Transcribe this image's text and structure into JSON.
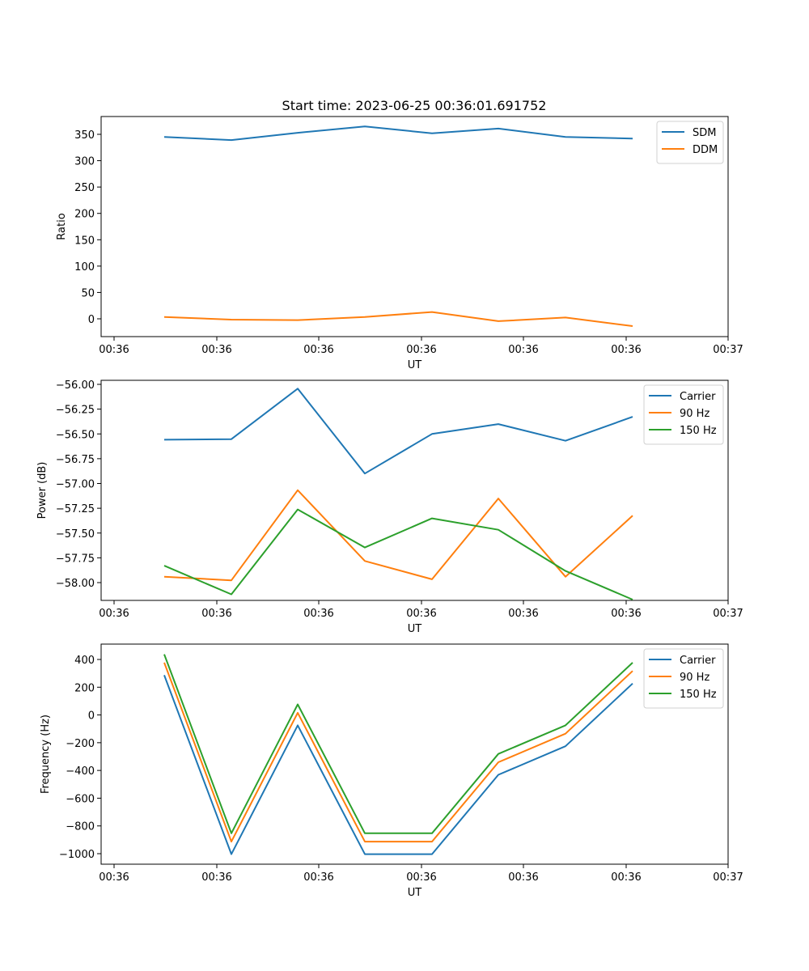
{
  "figure_title": "Start time: 2023-06-25 00:36:01.691752",
  "chart_data": [
    {
      "type": "line",
      "title": "Start time: 2023-06-25 00:36:01.691752",
      "xlabel": "UT",
      "ylabel": "Ratio",
      "x_ticks": [
        "00:36",
        "00:36",
        "00:36",
        "00:36",
        "00:36",
        "00:36",
        "00:36",
        "00:37"
      ],
      "y_ticks": [
        "0",
        "50",
        "100",
        "150",
        "200",
        "250",
        "300",
        "350"
      ],
      "ylim": [
        -35,
        385
      ],
      "grid": false,
      "legend_position": "top-right",
      "series": [
        {
          "name": "SDM",
          "color": "#1f77b4",
          "values": [
            346,
            340,
            354,
            366,
            353,
            362,
            346,
            343
          ]
        },
        {
          "name": "DDM",
          "color": "#ff7f0e",
          "values": [
            2.5,
            -2.5,
            -3.5,
            2.5,
            12,
            -5.5,
            1.5,
            -15
          ]
        }
      ]
    },
    {
      "type": "line",
      "title": "",
      "xlabel": "UT",
      "ylabel": "Power (dB)",
      "x_ticks": [
        "00:36",
        "00:36",
        "00:36",
        "00:36",
        "00:36",
        "00:36",
        "00:36",
        "00:37"
      ],
      "y_ticks": [
        "−58.00",
        "−57.75",
        "−57.50",
        "−57.25",
        "−57.00",
        "−56.75",
        "−56.50",
        "−56.25",
        "−56.00"
      ],
      "ylim": [
        -58.093,
        -55.98
      ],
      "grid": false,
      "legend_position": "top-right",
      "series": [
        {
          "name": "Carrier",
          "color": "#1f77b4",
          "values": [
            -56.55,
            -56.545,
            -56.06,
            -56.875,
            -56.495,
            -56.4,
            -56.56,
            -56.33
          ]
        },
        {
          "name": "90 Hz",
          "color": "#ff7f0e",
          "values": [
            -57.865,
            -57.9,
            -57.035,
            -57.715,
            -57.89,
            -57.115,
            -57.865,
            -57.28
          ]
        },
        {
          "name": "150 Hz",
          "color": "#2ca02c",
          "values": [
            -57.76,
            -58.035,
            -57.22,
            -57.585,
            -57.305,
            -57.415,
            -57.81,
            -58.085
          ]
        }
      ]
    },
    {
      "type": "line",
      "title": "",
      "xlabel": "UT",
      "ylabel": "Frequency (Hz)",
      "x_ticks": [
        "00:36",
        "00:36",
        "00:36",
        "00:36",
        "00:36",
        "00:36",
        "00:36",
        "00:37"
      ],
      "y_ticks": [
        "−1000",
        "−800",
        "−600",
        "−400",
        "−200",
        "0",
        "200",
        "400"
      ],
      "ylim": [
        -1072,
        508
      ],
      "grid": false,
      "legend_position": "top-right",
      "series": [
        {
          "name": "Carrier",
          "color": "#1f77b4",
          "values": [
            285,
            -1000,
            -75,
            -1000,
            -1000,
            -430,
            -225,
            225
          ]
        },
        {
          "name": "90 Hz",
          "color": "#ff7f0e",
          "values": [
            375,
            -910,
            15,
            -910,
            -910,
            -340,
            -135,
            315
          ]
        },
        {
          "name": "150 Hz",
          "color": "#2ca02c",
          "values": [
            435,
            -850,
            75,
            -850,
            -850,
            -280,
            -75,
            375
          ]
        }
      ]
    }
  ]
}
